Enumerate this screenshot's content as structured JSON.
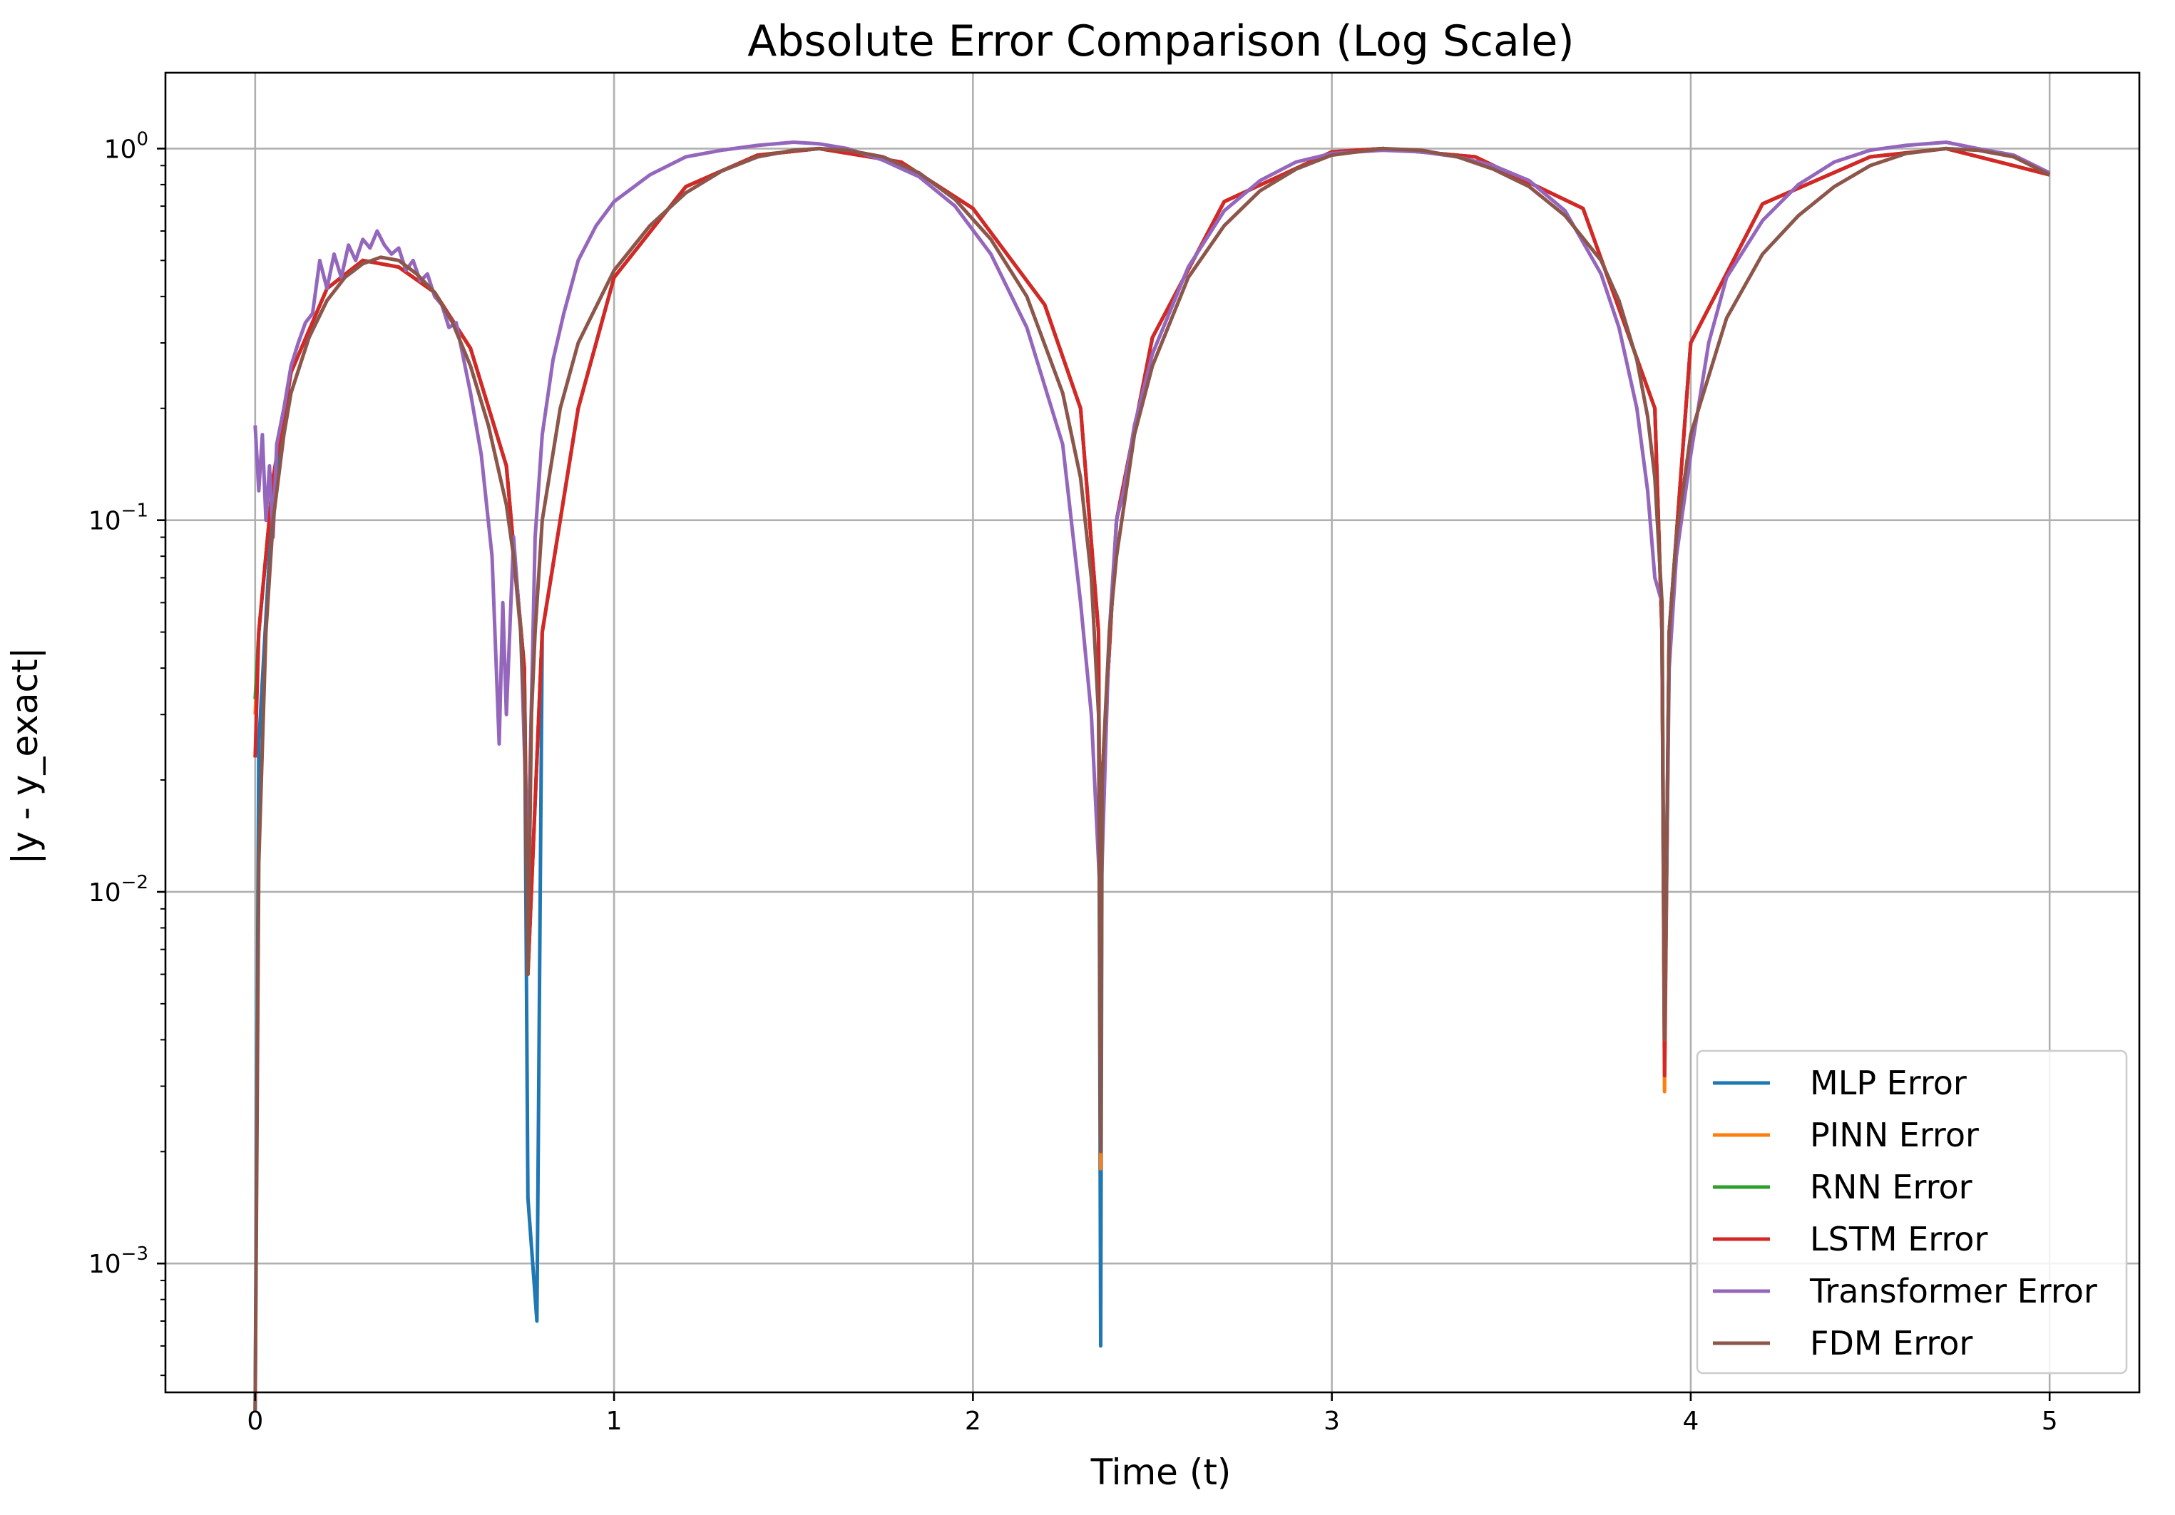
{
  "chart_data": {
    "type": "line",
    "title": "Absolute Error Comparison (Log Scale)",
    "xlabel": "Time (t)",
    "ylabel": "|y - y_exact|",
    "xscale": "linear",
    "yscale": "log",
    "xlim": [
      -0.25,
      5.25
    ],
    "ylim": [
      0.00045,
      1.6
    ],
    "grid": true,
    "legend_position": "lower-right",
    "x_ticks": [
      0,
      1,
      2,
      3,
      4,
      5
    ],
    "x_tick_labels": [
      "0",
      "1",
      "2",
      "3",
      "4",
      "5"
    ],
    "y_ticks": [
      0.001,
      0.01,
      0.1,
      1
    ],
    "y_tick_labels": [
      {
        "base": "10",
        "exp": "−3"
      },
      {
        "base": "10",
        "exp": "−2"
      },
      {
        "base": "10",
        "exp": "−1"
      },
      {
        "base": "10",
        "exp": "0"
      }
    ],
    "series": [
      {
        "name": "MLP Error",
        "color": "#1f77b4",
        "x": [
          0,
          0.01,
          0.05,
          0.1,
          0.2,
          0.3,
          0.4,
          0.5,
          0.6,
          0.7,
          0.75,
          0.76,
          0.785,
          0.8,
          0.9,
          1.0,
          1.2,
          1.4,
          1.571,
          1.8,
          2.0,
          2.2,
          2.3,
          2.35,
          2.356,
          2.36,
          2.4,
          2.5,
          2.7,
          3.0,
          3.142,
          3.4,
          3.7,
          3.9,
          3.92,
          3.927,
          3.94,
          4.0,
          4.2,
          4.5,
          4.712,
          5.0
        ],
        "y": [
          0.0004,
          0.025,
          0.12,
          0.25,
          0.42,
          0.5,
          0.48,
          0.41,
          0.29,
          0.14,
          0.04,
          0.0015,
          0.0007,
          0.05,
          0.2,
          0.45,
          0.79,
          0.96,
          1.0,
          0.92,
          0.69,
          0.38,
          0.2,
          0.05,
          0.0006,
          0.02,
          0.1,
          0.31,
          0.72,
          0.98,
          1.0,
          0.95,
          0.69,
          0.2,
          0.05,
          0.004,
          0.05,
          0.3,
          0.71,
          0.95,
          1.0,
          0.85
        ]
      },
      {
        "name": "PINN Error",
        "color": "#ff7f0e",
        "x": [
          0,
          0.01,
          0.05,
          0.1,
          0.2,
          0.3,
          0.4,
          0.5,
          0.6,
          0.7,
          0.75,
          0.76,
          0.8,
          0.9,
          1.0,
          1.2,
          1.4,
          1.571,
          1.8,
          2.0,
          2.2,
          2.3,
          2.35,
          2.356,
          2.36,
          2.4,
          2.5,
          2.7,
          3.0,
          3.142,
          3.4,
          3.7,
          3.9,
          3.92,
          3.927,
          3.94,
          4.0,
          4.2,
          4.5,
          4.712,
          5.0
        ],
        "y": [
          0.03,
          0.05,
          0.13,
          0.25,
          0.42,
          0.5,
          0.48,
          0.41,
          0.29,
          0.14,
          0.04,
          0.006,
          0.05,
          0.2,
          0.45,
          0.79,
          0.96,
          1.0,
          0.92,
          0.69,
          0.38,
          0.2,
          0.05,
          0.0018,
          0.02,
          0.1,
          0.31,
          0.72,
          0.98,
          1.0,
          0.95,
          0.69,
          0.2,
          0.05,
          0.0029,
          0.05,
          0.3,
          0.71,
          0.95,
          1.0,
          0.85
        ]
      },
      {
        "name": "RNN Error",
        "color": "#2ca02c",
        "x": [
          0,
          0.01,
          0.05,
          0.1,
          0.2,
          0.3,
          0.4,
          0.5,
          0.6,
          0.7,
          0.75,
          0.76,
          0.8,
          0.9,
          1.0,
          1.2,
          1.4,
          1.571,
          1.8,
          2.0,
          2.2,
          2.3,
          2.35,
          2.356,
          2.36,
          2.4,
          2.5,
          2.7,
          3.0,
          3.142,
          3.4,
          3.7,
          3.9,
          3.92,
          3.927,
          3.94,
          4.0,
          4.2,
          4.5,
          4.712,
          5.0
        ],
        "y": [
          0.033,
          0.05,
          0.13,
          0.25,
          0.42,
          0.5,
          0.48,
          0.41,
          0.29,
          0.14,
          0.04,
          0.006,
          0.05,
          0.2,
          0.45,
          0.79,
          0.96,
          1.0,
          0.92,
          0.69,
          0.38,
          0.2,
          0.05,
          0.0022,
          0.02,
          0.1,
          0.31,
          0.72,
          0.98,
          1.0,
          0.95,
          0.69,
          0.2,
          0.05,
          0.0035,
          0.05,
          0.3,
          0.71,
          0.95,
          1.0,
          0.85
        ]
      },
      {
        "name": "LSTM Error",
        "color": "#d62728",
        "x": [
          0,
          0.01,
          0.05,
          0.1,
          0.2,
          0.3,
          0.4,
          0.5,
          0.6,
          0.7,
          0.75,
          0.76,
          0.8,
          0.9,
          1.0,
          1.2,
          1.4,
          1.571,
          1.8,
          2.0,
          2.2,
          2.3,
          2.35,
          2.356,
          2.36,
          2.4,
          2.5,
          2.7,
          3.0,
          3.142,
          3.4,
          3.7,
          3.9,
          3.92,
          3.927,
          3.94,
          4.0,
          4.2,
          4.5,
          4.712,
          5.0
        ],
        "y": [
          0.023,
          0.05,
          0.13,
          0.25,
          0.42,
          0.5,
          0.48,
          0.41,
          0.29,
          0.14,
          0.04,
          0.006,
          0.05,
          0.2,
          0.45,
          0.79,
          0.96,
          1.0,
          0.92,
          0.69,
          0.38,
          0.2,
          0.05,
          0.003,
          0.02,
          0.1,
          0.31,
          0.72,
          0.98,
          1.0,
          0.95,
          0.69,
          0.2,
          0.05,
          0.0032,
          0.05,
          0.3,
          0.71,
          0.95,
          1.0,
          0.85
        ]
      },
      {
        "name": "Transformer Error",
        "color": "#9467bd",
        "x": [
          0,
          0.01,
          0.02,
          0.03,
          0.04,
          0.05,
          0.06,
          0.08,
          0.1,
          0.12,
          0.14,
          0.16,
          0.18,
          0.2,
          0.22,
          0.24,
          0.26,
          0.28,
          0.3,
          0.32,
          0.34,
          0.36,
          0.38,
          0.4,
          0.42,
          0.44,
          0.46,
          0.48,
          0.5,
          0.52,
          0.54,
          0.56,
          0.6,
          0.63,
          0.66,
          0.68,
          0.69,
          0.7,
          0.72,
          0.74,
          0.76,
          0.78,
          0.8,
          0.83,
          0.86,
          0.9,
          0.95,
          1.0,
          1.1,
          1.2,
          1.3,
          1.4,
          1.5,
          1.571,
          1.65,
          1.75,
          1.85,
          1.95,
          2.05,
          2.15,
          2.25,
          2.3,
          2.33,
          2.35,
          2.356,
          2.37,
          2.38,
          2.4,
          2.42,
          2.45,
          2.5,
          2.6,
          2.7,
          2.8,
          2.9,
          3.0,
          3.142,
          3.25,
          3.35,
          3.45,
          3.55,
          3.65,
          3.75,
          3.8,
          3.85,
          3.88,
          3.9,
          3.92,
          3.927,
          3.94,
          3.96,
          4.0,
          4.05,
          4.1,
          4.2,
          4.3,
          4.4,
          4.5,
          4.6,
          4.712,
          4.8,
          4.9,
          5.0
        ],
        "y": [
          0.18,
          0.12,
          0.17,
          0.1,
          0.14,
          0.09,
          0.16,
          0.2,
          0.26,
          0.3,
          0.34,
          0.36,
          0.5,
          0.42,
          0.52,
          0.45,
          0.55,
          0.5,
          0.57,
          0.54,
          0.6,
          0.55,
          0.52,
          0.54,
          0.47,
          0.5,
          0.44,
          0.46,
          0.4,
          0.38,
          0.33,
          0.34,
          0.22,
          0.15,
          0.08,
          0.025,
          0.06,
          0.03,
          0.09,
          0.05,
          0.012,
          0.09,
          0.17,
          0.27,
          0.36,
          0.5,
          0.62,
          0.72,
          0.85,
          0.95,
          0.99,
          1.02,
          1.04,
          1.03,
          1.0,
          0.93,
          0.84,
          0.7,
          0.52,
          0.33,
          0.16,
          0.06,
          0.03,
          0.012,
          0.009,
          0.025,
          0.05,
          0.1,
          0.12,
          0.18,
          0.28,
          0.48,
          0.68,
          0.82,
          0.92,
          0.97,
          0.99,
          0.98,
          0.95,
          0.9,
          0.82,
          0.68,
          0.46,
          0.33,
          0.2,
          0.12,
          0.07,
          0.06,
          0.004,
          0.04,
          0.08,
          0.15,
          0.3,
          0.45,
          0.64,
          0.8,
          0.92,
          0.99,
          1.02,
          1.04,
          1.0,
          0.96,
          0.86
        ]
      },
      {
        "name": "FDM Error",
        "color": "#8c564b",
        "x": [
          0,
          0.01,
          0.03,
          0.05,
          0.08,
          0.1,
          0.15,
          0.2,
          0.25,
          0.3,
          0.35,
          0.4,
          0.45,
          0.5,
          0.55,
          0.6,
          0.65,
          0.7,
          0.72,
          0.74,
          0.75,
          0.76,
          0.77,
          0.78,
          0.8,
          0.85,
          0.9,
          1.0,
          1.1,
          1.2,
          1.3,
          1.4,
          1.5,
          1.571,
          1.65,
          1.75,
          1.85,
          1.95,
          2.05,
          2.15,
          2.25,
          2.3,
          2.33,
          2.35,
          2.356,
          2.36,
          2.38,
          2.4,
          2.45,
          2.5,
          2.6,
          2.7,
          2.8,
          2.9,
          3.0,
          3.142,
          3.25,
          3.35,
          3.45,
          3.55,
          3.65,
          3.75,
          3.8,
          3.85,
          3.88,
          3.9,
          3.92,
          3.927,
          3.94,
          3.96,
          4.0,
          4.1,
          4.2,
          4.3,
          4.4,
          4.5,
          4.6,
          4.712,
          4.8,
          4.9,
          5.0
        ],
        "y": [
          0.0004,
          0.012,
          0.05,
          0.1,
          0.17,
          0.22,
          0.31,
          0.39,
          0.45,
          0.49,
          0.51,
          0.5,
          0.46,
          0.41,
          0.34,
          0.26,
          0.18,
          0.11,
          0.08,
          0.05,
          0.03,
          0.006,
          0.03,
          0.05,
          0.1,
          0.2,
          0.3,
          0.47,
          0.62,
          0.76,
          0.87,
          0.95,
          0.99,
          1.0,
          0.99,
          0.95,
          0.86,
          0.73,
          0.57,
          0.4,
          0.22,
          0.13,
          0.07,
          0.03,
          0.002,
          0.02,
          0.05,
          0.08,
          0.17,
          0.26,
          0.45,
          0.62,
          0.77,
          0.88,
          0.96,
          1.0,
          0.99,
          0.95,
          0.88,
          0.79,
          0.66,
          0.5,
          0.39,
          0.27,
          0.19,
          0.13,
          0.06,
          0.004,
          0.05,
          0.09,
          0.17,
          0.35,
          0.52,
          0.66,
          0.79,
          0.9,
          0.97,
          1.0,
          0.99,
          0.95,
          0.85
        ]
      }
    ]
  }
}
